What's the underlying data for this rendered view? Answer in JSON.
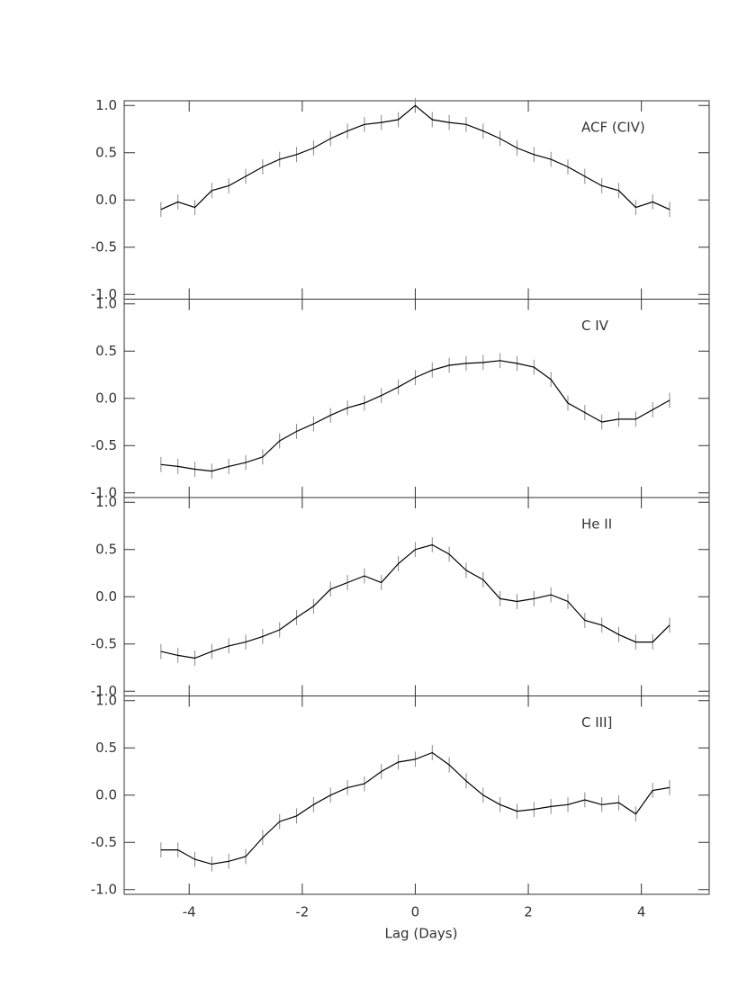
{
  "chart_data": [
    {
      "type": "line",
      "title": "ACF (CIV)",
      "color": "#000000",
      "error_color": "#888888",
      "x": [
        -4.5,
        -4.2,
        -3.9,
        -3.6,
        -3.3,
        -3.0,
        -2.7,
        -2.4,
        -2.1,
        -1.8,
        -1.5,
        -1.2,
        -0.9,
        -0.6,
        -0.3,
        0,
        0.3,
        0.6,
        0.9,
        1.2,
        1.5,
        1.8,
        2.1,
        2.4,
        2.7,
        3.0,
        3.3,
        3.6,
        3.9,
        4.2,
        4.5
      ],
      "values": [
        -0.1,
        -0.02,
        -0.08,
        0.1,
        0.15,
        0.25,
        0.35,
        0.43,
        0.48,
        0.55,
        0.65,
        0.73,
        0.8,
        0.82,
        0.85,
        1.0,
        0.85,
        0.82,
        0.8,
        0.73,
        0.65,
        0.55,
        0.48,
        0.43,
        0.35,
        0.25,
        0.15,
        0.1,
        -0.08,
        -0.02,
        -0.1
      ],
      "errors": [
        0.08,
        0.08,
        0.08,
        0.08,
        0.08,
        0.08,
        0.08,
        0.08,
        0.08,
        0.08,
        0.08,
        0.08,
        0.08,
        0.08,
        0.08,
        0.08,
        0.08,
        0.08,
        0.08,
        0.08,
        0.08,
        0.08,
        0.08,
        0.08,
        0.08,
        0.08,
        0.08,
        0.08,
        0.08,
        0.08,
        0.08
      ],
      "xlim": [
        -5.15,
        5.2
      ],
      "xticks": [
        -4,
        -2,
        0,
        2,
        4
      ],
      "ylim": [
        -1.05,
        1.05
      ],
      "yticks": [
        {
          "value": -1,
          "label": "-1.0"
        },
        {
          "value": -0.5,
          "label": "-0.5"
        },
        {
          "value": 0,
          "label": "0.0"
        },
        {
          "value": 0.5,
          "label": "0.5"
        },
        {
          "value": 1,
          "label": "1.0"
        }
      ]
    },
    {
      "type": "line",
      "title": "C IV",
      "color": "#000000",
      "error_color": "#888888",
      "x": [
        -4.5,
        -4.2,
        -3.9,
        -3.6,
        -3.3,
        -3.0,
        -2.7,
        -2.4,
        -2.1,
        -1.8,
        -1.5,
        -1.2,
        -0.9,
        -0.6,
        -0.3,
        0,
        0.3,
        0.6,
        0.9,
        1.2,
        1.5,
        1.8,
        2.1,
        2.4,
        2.7,
        3.0,
        3.3,
        3.6,
        3.9,
        4.2,
        4.5
      ],
      "values": [
        -0.7,
        -0.72,
        -0.75,
        -0.77,
        -0.72,
        -0.68,
        -0.62,
        -0.45,
        -0.35,
        -0.27,
        -0.18,
        -0.1,
        -0.05,
        0.03,
        0.12,
        0.22,
        0.3,
        0.35,
        0.37,
        0.38,
        0.4,
        0.37,
        0.33,
        0.2,
        -0.05,
        -0.15,
        -0.25,
        -0.22,
        -0.22,
        -0.12,
        -0.02
      ],
      "errors": [
        0.08,
        0.08,
        0.08,
        0.08,
        0.08,
        0.08,
        0.08,
        0.08,
        0.08,
        0.08,
        0.08,
        0.08,
        0.08,
        0.08,
        0.08,
        0.08,
        0.08,
        0.08,
        0.08,
        0.08,
        0.08,
        0.08,
        0.08,
        0.08,
        0.08,
        0.08,
        0.08,
        0.08,
        0.08,
        0.08,
        0.08
      ],
      "xlim": [
        -5.15,
        5.2
      ],
      "xticks": [
        -4,
        -2,
        0,
        2,
        4
      ],
      "ylim": [
        -1.05,
        1.05
      ],
      "yticks": [
        {
          "value": -1,
          "label": "-1.0"
        },
        {
          "value": -0.5,
          "label": "-0.5"
        },
        {
          "value": 0,
          "label": "0.0"
        },
        {
          "value": 0.5,
          "label": "0.5"
        },
        {
          "value": 1,
          "label": "1.0"
        }
      ]
    },
    {
      "type": "line",
      "title": "He II",
      "color": "#000000",
      "error_color": "#888888",
      "x": [
        -4.5,
        -4.2,
        -3.9,
        -3.6,
        -3.3,
        -3.0,
        -2.7,
        -2.4,
        -2.1,
        -1.8,
        -1.5,
        -1.2,
        -0.9,
        -0.6,
        -0.3,
        0,
        0.3,
        0.6,
        0.9,
        1.2,
        1.5,
        1.8,
        2.1,
        2.4,
        2.7,
        3.0,
        3.3,
        3.6,
        3.9,
        4.2,
        4.5
      ],
      "values": [
        -0.58,
        -0.62,
        -0.65,
        -0.58,
        -0.52,
        -0.48,
        -0.42,
        -0.35,
        -0.22,
        -0.1,
        0.08,
        0.15,
        0.22,
        0.15,
        0.35,
        0.5,
        0.55,
        0.45,
        0.28,
        0.18,
        -0.02,
        -0.05,
        -0.02,
        0.02,
        -0.05,
        -0.25,
        -0.3,
        -0.4,
        -0.48,
        -0.48,
        -0.3
      ],
      "errors": [
        0.08,
        0.08,
        0.08,
        0.08,
        0.08,
        0.08,
        0.08,
        0.08,
        0.08,
        0.08,
        0.08,
        0.08,
        0.08,
        0.08,
        0.08,
        0.08,
        0.08,
        0.08,
        0.08,
        0.08,
        0.08,
        0.08,
        0.08,
        0.08,
        0.08,
        0.08,
        0.08,
        0.08,
        0.08,
        0.08,
        0.08
      ],
      "xlim": [
        -5.15,
        5.2
      ],
      "xticks": [
        -4,
        -2,
        0,
        2,
        4
      ],
      "ylim": [
        -1.05,
        1.05
      ],
      "yticks": [
        {
          "value": -1,
          "label": "-1.0"
        },
        {
          "value": -0.5,
          "label": "-0.5"
        },
        {
          "value": 0,
          "label": "0.0"
        },
        {
          "value": 0.5,
          "label": "0.5"
        },
        {
          "value": 1,
          "label": "1.0"
        }
      ]
    },
    {
      "type": "line",
      "title": "C III]",
      "color": "#000000",
      "error_color": "#888888",
      "x": [
        -4.5,
        -4.2,
        -3.9,
        -3.6,
        -3.3,
        -3.0,
        -2.7,
        -2.4,
        -2.1,
        -1.8,
        -1.5,
        -1.2,
        -0.9,
        -0.6,
        -0.3,
        0,
        0.3,
        0.6,
        0.9,
        1.2,
        1.5,
        1.8,
        2.1,
        2.4,
        2.7,
        3.0,
        3.3,
        3.6,
        3.9,
        4.2,
        4.5
      ],
      "values": [
        -0.58,
        -0.58,
        -0.68,
        -0.73,
        -0.7,
        -0.65,
        -0.45,
        -0.28,
        -0.22,
        -0.1,
        0.0,
        0.08,
        0.12,
        0.25,
        0.35,
        0.38,
        0.45,
        0.32,
        0.15,
        0.0,
        -0.1,
        -0.17,
        -0.15,
        -0.12,
        -0.1,
        -0.05,
        -0.1,
        -0.08,
        -0.2,
        0.05,
        0.08
      ],
      "errors": [
        0.08,
        0.08,
        0.08,
        0.08,
        0.08,
        0.08,
        0.08,
        0.08,
        0.08,
        0.08,
        0.08,
        0.08,
        0.08,
        0.08,
        0.08,
        0.08,
        0.08,
        0.08,
        0.08,
        0.08,
        0.08,
        0.08,
        0.08,
        0.08,
        0.08,
        0.08,
        0.08,
        0.08,
        0.08,
        0.08,
        0.08
      ],
      "xlim": [
        -5.15,
        5.2
      ],
      "xticks": [
        -4,
        -2,
        0,
        2,
        4
      ],
      "ylim": [
        -1.05,
        1.05
      ],
      "yticks": [
        {
          "value": -1,
          "label": "-1.0"
        },
        {
          "value": -0.5,
          "label": "-0.5"
        },
        {
          "value": 0,
          "label": "0.0"
        },
        {
          "value": 0.5,
          "label": "0.5"
        },
        {
          "value": 1,
          "label": "1.0"
        }
      ],
      "xlabel": "Lag (Days)"
    }
  ]
}
